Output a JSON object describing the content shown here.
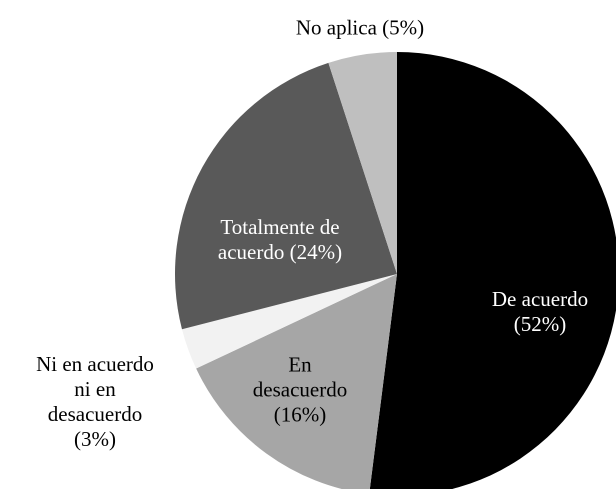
{
  "chart_data": {
    "type": "pie",
    "categories": [
      "De acuerdo",
      "En desacuerdo",
      "Ni en acuerdo ni en desacuerdo",
      "Totalmente de acuerdo",
      "No aplica"
    ],
    "values": [
      52,
      16,
      3,
      24,
      5
    ],
    "value_labels": [
      "(52%)",
      "(16%)",
      "(3%)",
      "(24%)",
      "(5%)"
    ],
    "colors": [
      "#000000",
      "#a6a6a6",
      "#f2f2f2",
      "#595959",
      "#bfbfbf"
    ]
  }
}
